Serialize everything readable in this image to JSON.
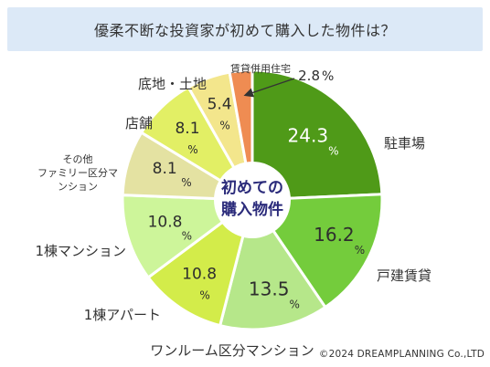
{
  "header": {
    "title": "優柔不断な投資家が初めて購入した物件は？"
  },
  "credit": "©2024 DREAMPLANNING Co.,LTD",
  "chart_data": {
    "type": "pie",
    "title": "初めての購入物件",
    "center_label": [
      "初めての",
      "購入物件"
    ],
    "unit": "%",
    "slices": [
      {
        "label": "駐車場",
        "value": 24.3,
        "color": "#4f9a18"
      },
      {
        "label": "戸建賃貸",
        "value": 16.2,
        "color": "#74cc3c"
      },
      {
        "label": "ワンルーム区分マンション",
        "value": 13.5,
        "color": "#b6e78a"
      },
      {
        "label": "1棟アパート",
        "value": 10.8,
        "color": "#d3ec4a"
      },
      {
        "label": "1棟マンション",
        "value": 10.8,
        "color": "#cdf59a"
      },
      {
        "label": "その他ファミリー区分マンション",
        "value": 8.1,
        "color": "#e4e2a2"
      },
      {
        "label": "店舗",
        "value": 8.1,
        "color": "#e2ef65"
      },
      {
        "label": "底地・土地",
        "value": 5.4,
        "color": "#f3e68c"
      },
      {
        "label": "賃貸併用住宅",
        "value": 2.8,
        "color": "#ef8c52"
      }
    ]
  }
}
